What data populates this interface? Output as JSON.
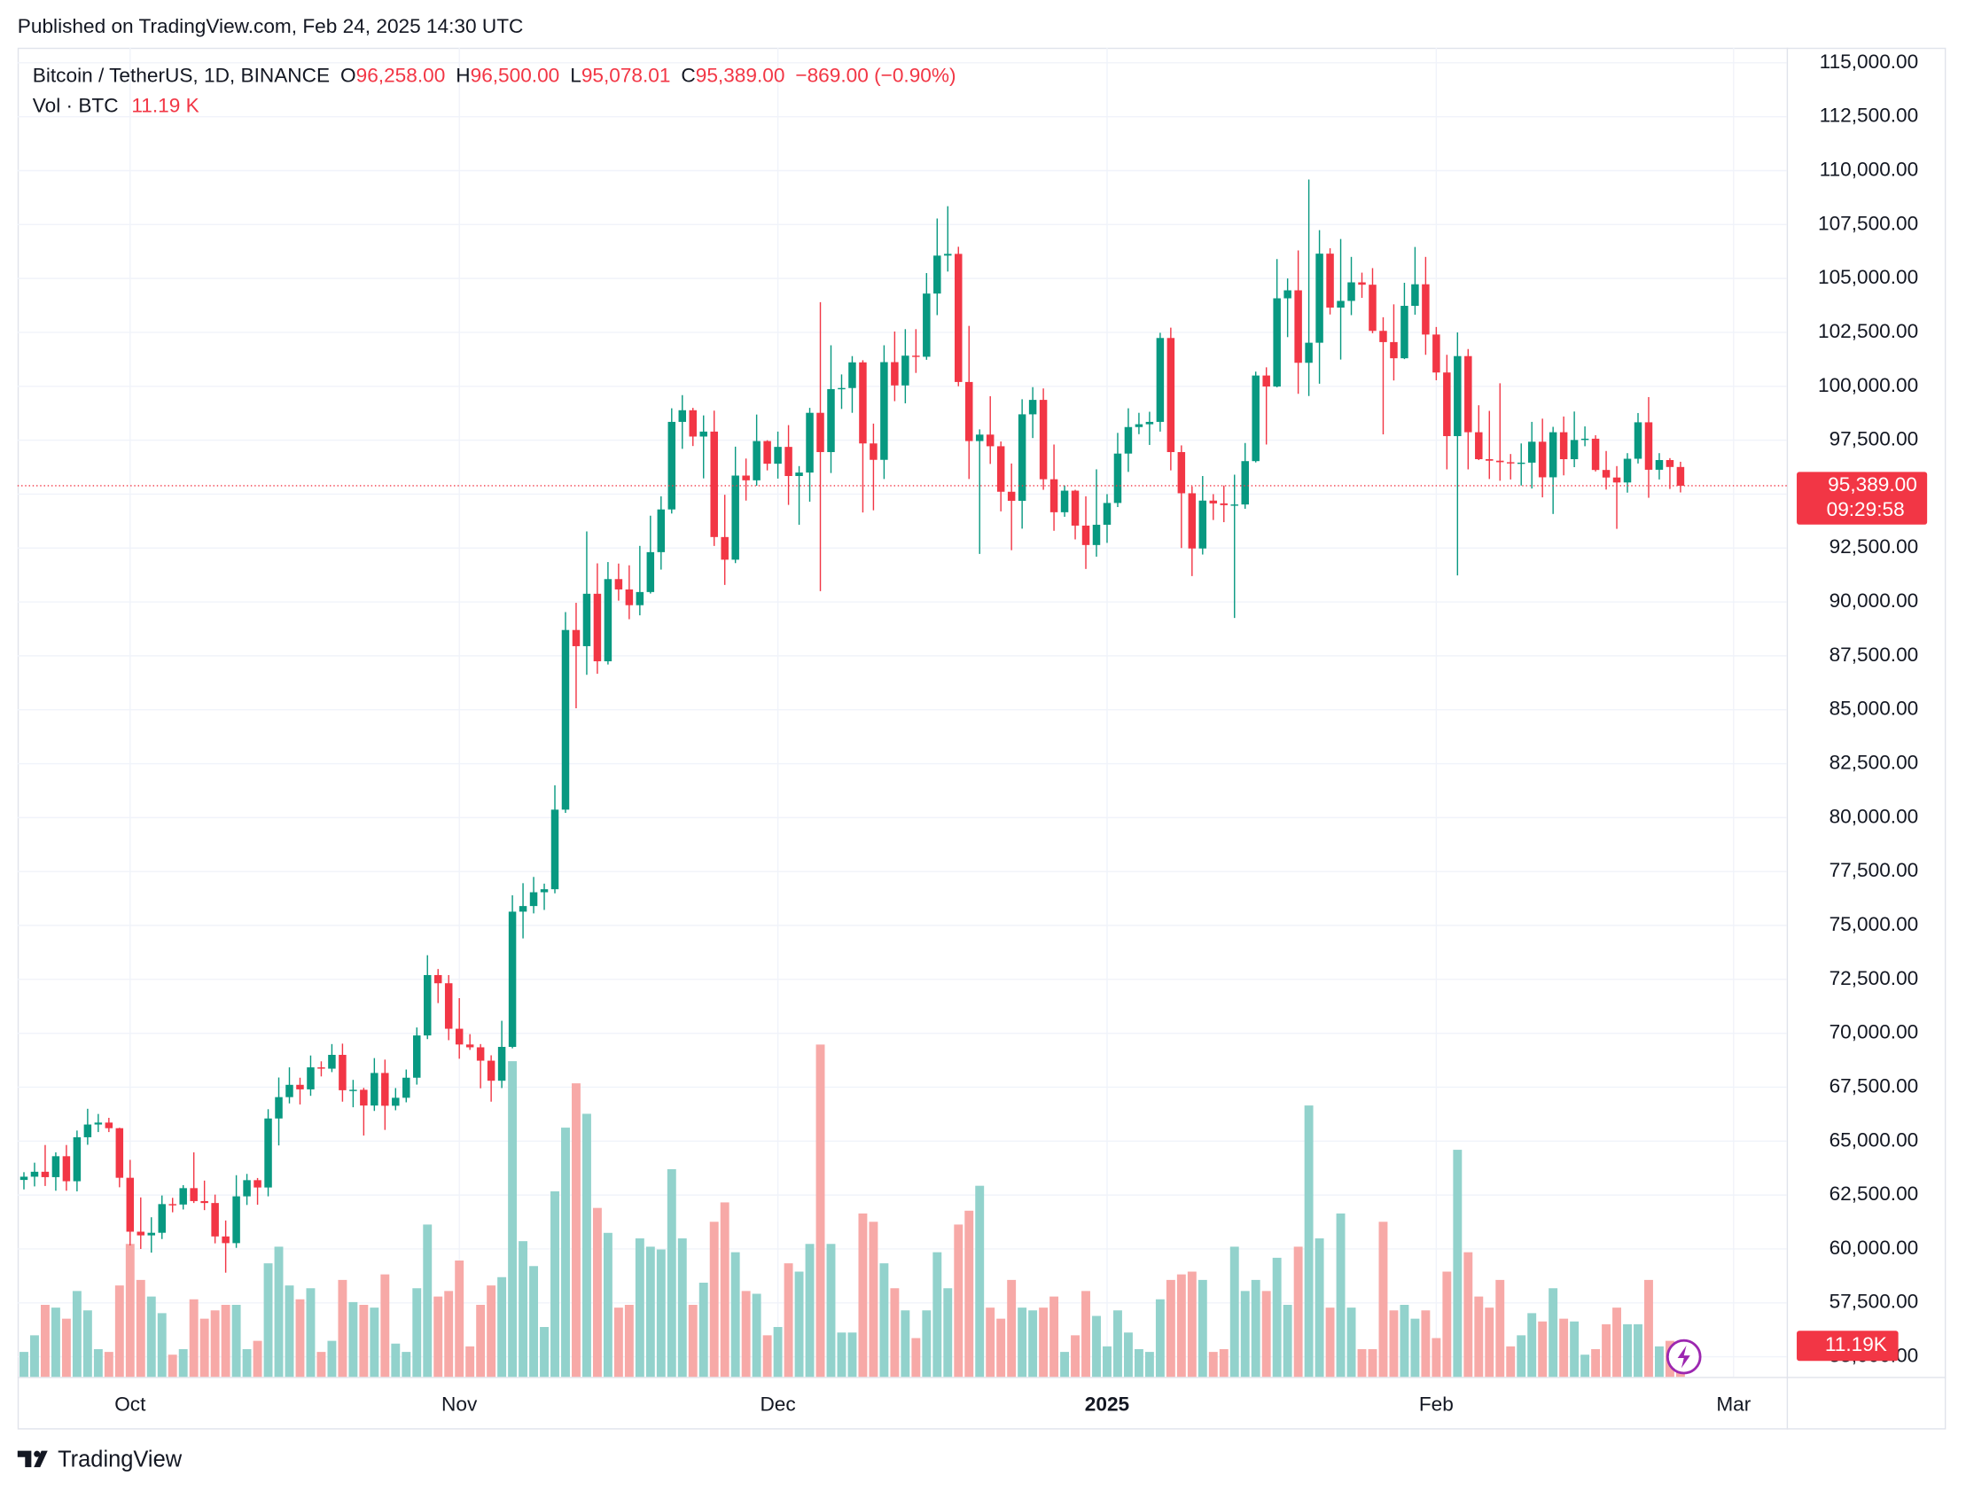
{
  "chart_data": {
    "type": "candlestick",
    "published": "Published on TradingView.com, Feb 24, 2025 14:30 UTC",
    "brand": "TradingView",
    "header": {
      "symbol": "Bitcoin / TetherUS, 1D, BINANCE",
      "open_key": "O",
      "open": "96,258.00",
      "high_key": "H",
      "high": "96,500.00",
      "low_key": "L",
      "low": "95,078.01",
      "close_key": "C",
      "close": "95,389.00",
      "change": "−869.00 (−0.90%)",
      "volume_title": "Vol · BTC",
      "volume": "11.19 K"
    },
    "price_label": "95,389.00",
    "countdown": "09:29:58",
    "volume_axis_label": "11.19K",
    "up_color": "#089981",
    "down_color": "#f23645",
    "volume_up_color": "#92d2cc",
    "volume_down_color": "#f7a9a7",
    "grid": true,
    "xlim": [
      -0.6,
      166
    ],
    "xticks": [
      {
        "value": 10,
        "label": "Oct"
      },
      {
        "value": 41,
        "label": "Nov"
      },
      {
        "value": 71,
        "label": "Dec"
      },
      {
        "value": 102,
        "label": "2025"
      },
      {
        "value": 133,
        "label": "Feb"
      },
      {
        "value": 161,
        "label": "Mar"
      }
    ],
    "ylim": [
      54070,
      115700
    ],
    "yticks": [
      {
        "value": 55000,
        "label": "55,000.00"
      },
      {
        "value": 57500,
        "label": "57,500.00"
      },
      {
        "value": 60000,
        "label": "60,000.00"
      },
      {
        "value": 62500,
        "label": "62,500.00"
      },
      {
        "value": 65000,
        "label": "65,000.00"
      },
      {
        "value": 67500,
        "label": "67,500.00"
      },
      {
        "value": 70000,
        "label": "70,000.00"
      },
      {
        "value": 72500,
        "label": "72,500.00"
      },
      {
        "value": 75000,
        "label": "75,000.00"
      },
      {
        "value": 77500,
        "label": "77,500.00"
      },
      {
        "value": 80000,
        "label": "80,000.00"
      },
      {
        "value": 82500,
        "label": "82,500.00"
      },
      {
        "value": 85000,
        "label": "85,000.00"
      },
      {
        "value": 87500,
        "label": "87,500.00"
      },
      {
        "value": 90000,
        "label": "90,000.00"
      },
      {
        "value": 92500,
        "label": "92,500.00"
      },
      {
        "value": 95000,
        "label": "95,000.00"
      },
      {
        "value": 97500,
        "label": "97,500.00"
      },
      {
        "value": 100000,
        "label": "100,000.00"
      },
      {
        "value": 102500,
        "label": "102,500.00"
      },
      {
        "value": 105000,
        "label": "105,000.00"
      },
      {
        "value": 107500,
        "label": "107,500.00"
      },
      {
        "value": 110000,
        "label": "110,000.00"
      },
      {
        "value": 112500,
        "label": "112,500.00"
      },
      {
        "value": 115000,
        "label": "115,000.00"
      }
    ],
    "volume_ylim": [
      0,
      480000
    ],
    "open": [
      63200,
      63350,
      63580,
      63330,
      64300,
      63140,
      65180,
      65770,
      65860,
      65600,
      63300,
      60800,
      60630,
      60750,
      62080,
      62060,
      62820,
      62220,
      62130,
      60580,
      60270,
      62440,
      63190,
      62850,
      66050,
      67040,
      67610,
      67400,
      68420,
      68360,
      69000,
      67360,
      67380,
      66650,
      68160,
      66640,
      67010,
      67940,
      69900,
      72700,
      72320,
      70210,
      69480,
      69350,
      68730,
      67800,
      69370,
      75640,
      75900,
      76540,
      76680,
      80370,
      88700,
      87950,
      90380,
      87250,
      91060,
      90580,
      89850,
      90460,
      92310,
      94290,
      98350,
      98890,
      97670,
      97900,
      93010,
      91960,
      95860,
      95640,
      97460,
      96410,
      97190,
      95840,
      96000,
      98770,
      96950,
      99870,
      99920,
      101110,
      97350,
      96590,
      101120,
      100040,
      101420,
      101370,
      104300,
      106060,
      106140,
      100200,
      97460,
      97760,
      97220,
      95110,
      94690,
      98700,
      99370,
      95690,
      94160,
      95160,
      93540,
      92640,
      93580,
      94590,
      96880,
      98110,
      98240,
      98350,
      102240,
      96950,
      95040,
      92480,
      94700,
      94570,
      94490,
      94520,
      96530,
      100500,
      99990,
      104080,
      104450,
      101090,
      102020,
      106150,
      103650,
      103960,
      104820,
      104710,
      102570,
      102050,
      101300,
      103730,
      104730,
      102400,
      100640,
      97690,
      101400,
      97870,
      96620,
      96550,
      96480,
      96450,
      96460,
      97430,
      95780,
      97870,
      96620,
      97510,
      97570,
      96120,
      95770,
      95540,
      96640,
      98330,
      96130,
      96580,
      96258
    ],
    "high": [
      63560,
      64000,
      64820,
      64480,
      64820,
      65490,
      66500,
      66260,
      66080,
      65620,
      64130,
      62390,
      61470,
      62480,
      62370,
      62960,
      64480,
      63170,
      62520,
      61320,
      63420,
      63480,
      63290,
      66480,
      67950,
      68420,
      67940,
      68970,
      68700,
      69500,
      69520,
      67840,
      67470,
      68850,
      68780,
      67460,
      68320,
      70270,
      73620,
      72980,
      72700,
      71630,
      69960,
      69500,
      68980,
      70580,
      76400,
      76960,
      77250,
      76940,
      81500,
      89530,
      89960,
      93270,
      91790,
      91850,
      91780,
      91700,
      92600,
      94000,
      94900,
      98980,
      99590,
      99000,
      98650,
      98870,
      94970,
      97200,
      96650,
      98690,
      97500,
      97900,
      98200,
      96300,
      99000,
      103900,
      101900,
      100550,
      101400,
      101210,
      98270,
      101900,
      102540,
      102650,
      102650,
      105250,
      107780,
      108350,
      106470,
      102800,
      98000,
      99540,
      97440,
      96420,
      99400,
      99960,
      99900,
      97300,
      95400,
      95200,
      94900,
      96150,
      95000,
      97840,
      98980,
      98770,
      98820,
      102480,
      102720,
      97260,
      95360,
      95840,
      95000,
      95400,
      95900,
      97370,
      100680,
      100880,
      105900,
      105000,
      106300,
      109590,
      107240,
      106400,
      106830,
      106000,
      105270,
      105480,
      103200,
      103800,
      104800,
      106460,
      106000,
      102750,
      101460,
      102500,
      101730,
      99120,
      98860,
      100140,
      96860,
      97350,
      98350,
      98500,
      98120,
      98600,
      98830,
      98140,
      97730,
      97000,
      96300,
      96900,
      98760,
      99500,
      96900,
      96670,
      96500
    ],
    "low": [
      62760,
      62900,
      62920,
      62700,
      62700,
      62670,
      64830,
      65420,
      65420,
      62860,
      60160,
      60000,
      59830,
      60460,
      61700,
      61830,
      62130,
      61800,
      60260,
      58900,
      60050,
      62040,
      62050,
      62440,
      64800,
      66750,
      66700,
      67100,
      68000,
      68200,
      66830,
      66570,
      65260,
      66400,
      65520,
      66430,
      66800,
      67620,
      69730,
      71400,
      69680,
      68820,
      69230,
      67450,
      66830,
      67460,
      69300,
      74400,
      75560,
      75720,
      76490,
      80220,
      85070,
      86620,
      86670,
      87100,
      90060,
      89200,
      89380,
      90390,
      91500,
      94100,
      97100,
      97230,
      95730,
      92600,
      90790,
      91800,
      94700,
      95390,
      96100,
      95720,
      94500,
      93580,
      94650,
      90500,
      95980,
      98950,
      98770,
      94150,
      94250,
      95700,
      99310,
      99210,
      100620,
      101230,
      103300,
      105320,
      100000,
      95700,
      92230,
      96400,
      94200,
      92400,
      93400,
      97600,
      95200,
      93300,
      93950,
      92900,
      91530,
      92100,
      92740,
      94400,
      96030,
      97780,
      97280,
      97900,
      96100,
      92500,
      91200,
      92200,
      93800,
      93700,
      89260,
      94320,
      96470,
      97300,
      99950,
      102280,
      99650,
      99550,
      100120,
      103330,
      101240,
      103300,
      104100,
      102460,
      97770,
      100270,
      101260,
      103320,
      101460,
      100280,
      96150,
      91230,
      96150,
      96580,
      95700,
      95620,
      95680,
      95400,
      95260,
      94850,
      94080,
      95870,
      96250,
      97220,
      96050,
      95210,
      93390,
      95070,
      96420,
      94830,
      95680,
      95240,
      95078.01
    ],
    "close": [
      63350,
      63580,
      63330,
      64300,
      63140,
      65180,
      65770,
      65860,
      65600,
      63300,
      60800,
      60630,
      60750,
      62080,
      62060,
      62820,
      62220,
      62130,
      60580,
      60270,
      62440,
      63190,
      62850,
      66050,
      67040,
      67610,
      67400,
      68420,
      68360,
      69000,
      67360,
      67380,
      66650,
      68160,
      66640,
      67010,
      67940,
      69900,
      72700,
      72320,
      70210,
      69480,
      69350,
      68730,
      67800,
      69370,
      75640,
      75900,
      76540,
      76680,
      80370,
      88700,
      87950,
      90380,
      87250,
      91060,
      90580,
      89850,
      90460,
      92310,
      94290,
      98350,
      98890,
      97670,
      97900,
      93010,
      91960,
      95860,
      95640,
      97460,
      96410,
      97190,
      95840,
      96000,
      98770,
      96950,
      99870,
      99920,
      101110,
      97350,
      96590,
      101120,
      100040,
      101420,
      101370,
      104300,
      106060,
      106140,
      100200,
      97460,
      97760,
      97220,
      95110,
      94690,
      98700,
      99370,
      95690,
      94160,
      95160,
      93540,
      92640,
      93580,
      94590,
      96880,
      98110,
      98240,
      98350,
      102240,
      96950,
      95040,
      92480,
      94700,
      94570,
      94490,
      94520,
      96530,
      100500,
      99990,
      104080,
      104450,
      101090,
      102020,
      106150,
      103650,
      103960,
      104820,
      104710,
      102570,
      102050,
      101300,
      103730,
      104730,
      102400,
      100640,
      97690,
      101400,
      97870,
      96620,
      96550,
      96480,
      96450,
      96460,
      97430,
      95780,
      97870,
      96620,
      97510,
      97570,
      96120,
      95770,
      95540,
      96640,
      98330,
      96130,
      96580,
      96258,
      95389
    ],
    "volume": [
      9000,
      15000,
      26000,
      25000,
      21000,
      31000,
      24000,
      10000,
      9000,
      33000,
      48000,
      35000,
      29000,
      23000,
      8000,
      10000,
      28000,
      21000,
      24000,
      26000,
      26000,
      10000,
      13000,
      41000,
      47000,
      33000,
      28000,
      32000,
      9000,
      13000,
      35000,
      27000,
      26000,
      25000,
      37000,
      12000,
      9000,
      32000,
      55000,
      29000,
      31000,
      42000,
      11000,
      26000,
      33000,
      36000,
      114000,
      49000,
      40000,
      18000,
      67000,
      90000,
      106000,
      95000,
      61000,
      52000,
      25000,
      26000,
      50000,
      47000,
      46000,
      75000,
      50000,
      26000,
      34000,
      56000,
      63000,
      45000,
      31000,
      30000,
      15000,
      18000,
      41000,
      38000,
      48000,
      120000,
      48000,
      16000,
      16000,
      59000,
      56000,
      41000,
      32000,
      24000,
      14000,
      24000,
      45000,
      32000,
      55000,
      60000,
      69000,
      25000,
      21000,
      35000,
      25000,
      24000,
      25000,
      29000,
      9000,
      15000,
      31000,
      22000,
      11000,
      24000,
      16000,
      10000,
      9000,
      28000,
      35000,
      37000,
      38000,
      35000,
      9000,
      10000,
      47000,
      31000,
      35000,
      31000,
      43000,
      26000,
      47000,
      98000,
      50000,
      25000,
      59000,
      25000,
      10000,
      10000,
      56000,
      24000,
      26000,
      21000,
      24000,
      14000,
      38000,
      82000,
      45000,
      29000,
      25000,
      35000,
      11000,
      15000,
      23000,
      20000,
      32000,
      21000,
      20000,
      8000,
      10000,
      19000,
      25000,
      19000,
      19000,
      35000,
      11000,
      13000,
      11190
    ]
  }
}
